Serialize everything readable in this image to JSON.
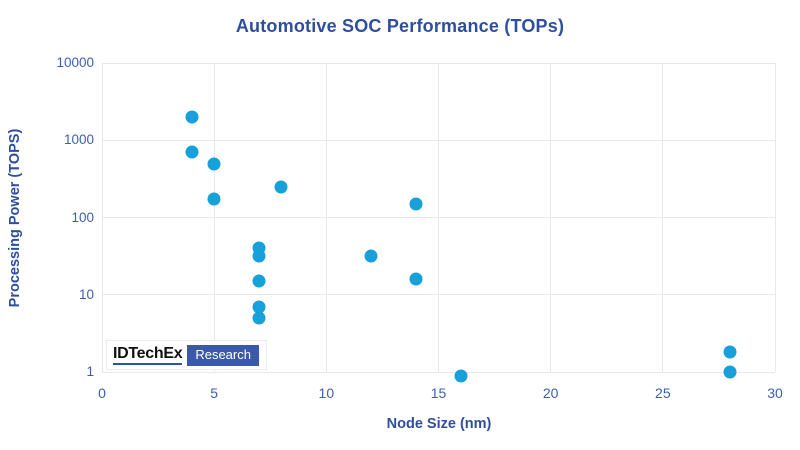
{
  "chart_data": {
    "type": "scatter",
    "title": "Automotive SOC Performance (TOPs)",
    "xlabel": "Node Size (nm)",
    "ylabel": "Processing Power (TOPS)",
    "xlim": [
      0,
      30
    ],
    "xticks": [
      0,
      5,
      10,
      15,
      20,
      25,
      30
    ],
    "yscale": "log",
    "ylim": [
      1,
      10000
    ],
    "yticks": [
      1,
      10,
      100,
      1000,
      10000
    ],
    "grid": true,
    "legend": false,
    "point_color": "#18A0DB",
    "points": [
      {
        "x": 4,
        "y": 2000
      },
      {
        "x": 4,
        "y": 700
      },
      {
        "x": 5,
        "y": 500
      },
      {
        "x": 5,
        "y": 175
      },
      {
        "x": 7,
        "y": 40
      },
      {
        "x": 7,
        "y": 32
      },
      {
        "x": 7,
        "y": 15
      },
      {
        "x": 7,
        "y": 7
      },
      {
        "x": 7,
        "y": 5
      },
      {
        "x": 8,
        "y": 250
      },
      {
        "x": 12,
        "y": 32
      },
      {
        "x": 14,
        "y": 150
      },
      {
        "x": 14,
        "y": 16
      },
      {
        "x": 16,
        "y": 0.9
      },
      {
        "x": 28,
        "y": 1.8
      },
      {
        "x": 28,
        "y": 1
      }
    ]
  },
  "branding": {
    "name": "IDTechEx",
    "division": "Research"
  },
  "colors": {
    "title": "#2E4E9F",
    "tick_labels": "#3C5FAC",
    "gridline": "#E8E8E8",
    "point": "#18A0DB",
    "logo_box": "#3A5AA9",
    "logo_underline": "#2D53A3"
  }
}
